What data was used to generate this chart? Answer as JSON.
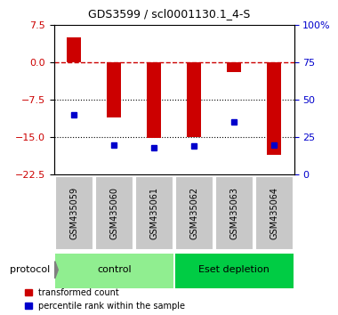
{
  "title": "GDS3599 / scl0001130.1_4-S",
  "samples": [
    "GSM435059",
    "GSM435060",
    "GSM435061",
    "GSM435062",
    "GSM435063",
    "GSM435064"
  ],
  "red_bars": [
    5.0,
    -11.0,
    -15.2,
    -15.0,
    -2.0,
    -18.5
  ],
  "blue_percentiles": [
    40,
    20,
    18,
    19,
    35,
    20
  ],
  "ylim_left": [
    -22.5,
    7.5
  ],
  "ylim_right": [
    0,
    100
  ],
  "yticks_left": [
    7.5,
    0,
    -7.5,
    -15,
    -22.5
  ],
  "yticks_right": [
    100,
    75,
    50,
    25,
    0
  ],
  "dotted_lines": [
    -7.5,
    -15
  ],
  "protocol_groups": [
    {
      "label": "control",
      "samples": [
        0,
        1,
        2
      ],
      "color": "#90EE90"
    },
    {
      "label": "Eset depletion",
      "samples": [
        3,
        4,
        5
      ],
      "color": "#00CC44"
    }
  ],
  "bar_color": "#CC0000",
  "dot_color": "#0000CC",
  "label_red": "transformed count",
  "label_blue": "percentile rank within the sample",
  "tick_label_color_left": "#CC0000",
  "tick_label_color_right": "#0000CC"
}
